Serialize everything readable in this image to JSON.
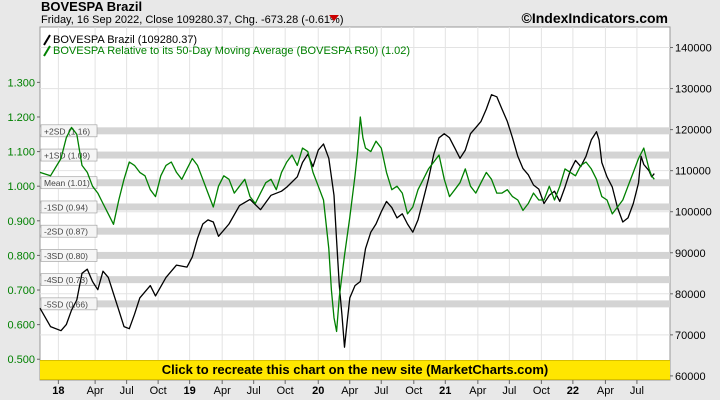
{
  "header": {
    "title": "BOVESPA Brazil",
    "subtitle_prefix": "Friday, 16 Sep 2022, Close 109280.37, Chg. -673.28 (-0.61%)",
    "site": "©IndexIndicators.com",
    "down_arrow_icon": "down-triangle-icon",
    "down_color": "#cc0000"
  },
  "legend": [
    {
      "label": "BOVESPA Brazil (109280.37)",
      "color": "#000000"
    },
    {
      "label": "BOVESPA Relative to its 50-Day Moving Average (BOVESPA R50) (1.02)",
      "color": "#008000"
    }
  ],
  "banner": {
    "text": "Click to recreate this chart on the new site (MarketCharts.com)",
    "color": "#ffe600"
  },
  "chart_data": {
    "type": "line",
    "x_ticks": [
      {
        "label": "18",
        "bold": true,
        "t": 0.035
      },
      {
        "label": "Apr",
        "bold": false,
        "t": 0.105
      },
      {
        "label": "Jul",
        "bold": false,
        "t": 0.165
      },
      {
        "label": "Oct",
        "bold": false,
        "t": 0.225
      },
      {
        "label": "19",
        "bold": true,
        "t": 0.285
      },
      {
        "label": "Apr",
        "bold": false,
        "t": 0.347
      },
      {
        "label": "Jul",
        "bold": false,
        "t": 0.407
      },
      {
        "label": "Oct",
        "bold": false,
        "t": 0.467
      },
      {
        "label": "20",
        "bold": true,
        "t": 0.53
      },
      {
        "label": "Apr",
        "bold": false,
        "t": 0.59
      },
      {
        "label": "Jul",
        "bold": false,
        "t": 0.65
      },
      {
        "label": "Oct",
        "bold": false,
        "t": 0.712
      },
      {
        "label": "21",
        "bold": true,
        "t": 0.772
      },
      {
        "label": "Apr",
        "bold": false,
        "t": 0.834
      },
      {
        "label": "Jul",
        "bold": false,
        "t": 0.894
      },
      {
        "label": "Oct",
        "bold": false,
        "t": 0.955
      },
      {
        "label": "22",
        "bold": true,
        "t": 1.015
      },
      {
        "label": "Apr",
        "bold": false,
        "t": 1.077
      },
      {
        "label": "Jul",
        "bold": false,
        "t": 1.137
      }
    ],
    "left_axis": {
      "ticks": [
        "1.300",
        "1.200",
        "1.100",
        "1.000",
        "0.900",
        "0.800",
        "0.700",
        "0.600",
        "0.500"
      ],
      "values": [
        1.3,
        1.2,
        1.1,
        1.0,
        0.9,
        0.8,
        0.7,
        0.6,
        0.5
      ],
      "ylim": [
        0.44,
        1.46
      ]
    },
    "right_axis": {
      "ticks": [
        "140000",
        "130000",
        "120000",
        "110000",
        "100000",
        "90000",
        "80000",
        "70000",
        "60000"
      ],
      "values": [
        140000,
        130000,
        120000,
        110000,
        100000,
        90000,
        80000,
        70000,
        60000
      ],
      "ylim": [
        59000,
        145000
      ]
    },
    "sd_bands": [
      {
        "label": "+2SD (1.16)",
        "value": 1.16
      },
      {
        "label": "+1SD (1.09)",
        "value": 1.09
      },
      {
        "label": "Mean (1.01)",
        "value": 1.01
      },
      {
        "label": "-1SD (0.94)",
        "value": 0.94
      },
      {
        "label": "-2SD (0.87)",
        "value": 0.87
      },
      {
        "label": "-3SD (0.80)",
        "value": 0.8
      },
      {
        "label": "-4SD (0.73)",
        "value": 0.73
      },
      {
        "label": "-5SD (0.66)",
        "value": 0.66
      }
    ],
    "series": [
      {
        "name": "BOVESPA Brazil",
        "axis": "right",
        "color": "#000000",
        "points": [
          [
            0.0,
            76500
          ],
          [
            0.02,
            72000
          ],
          [
            0.04,
            71000
          ],
          [
            0.05,
            72500
          ],
          [
            0.06,
            76000
          ],
          [
            0.07,
            78500
          ],
          [
            0.08,
            85000
          ],
          [
            0.09,
            86000
          ],
          [
            0.1,
            83000
          ],
          [
            0.11,
            81000
          ],
          [
            0.12,
            85500
          ],
          [
            0.13,
            84000
          ],
          [
            0.15,
            76000
          ],
          [
            0.16,
            72000
          ],
          [
            0.17,
            71500
          ],
          [
            0.18,
            75000
          ],
          [
            0.19,
            79000
          ],
          [
            0.21,
            82000
          ],
          [
            0.22,
            79500
          ],
          [
            0.24,
            84000
          ],
          [
            0.26,
            87000
          ],
          [
            0.28,
            86500
          ],
          [
            0.29,
            89000
          ],
          [
            0.3,
            93500
          ],
          [
            0.31,
            97000
          ],
          [
            0.32,
            98000
          ],
          [
            0.33,
            97500
          ],
          [
            0.34,
            94000
          ],
          [
            0.36,
            97000
          ],
          [
            0.38,
            101500
          ],
          [
            0.4,
            103000
          ],
          [
            0.42,
            100500
          ],
          [
            0.44,
            104000
          ],
          [
            0.46,
            105000
          ],
          [
            0.47,
            106000
          ],
          [
            0.49,
            108500
          ],
          [
            0.5,
            112000
          ],
          [
            0.51,
            114000
          ],
          [
            0.52,
            111000
          ],
          [
            0.53,
            115000
          ],
          [
            0.54,
            116500
          ],
          [
            0.55,
            113000
          ],
          [
            0.56,
            104000
          ],
          [
            0.565,
            93000
          ],
          [
            0.57,
            82000
          ],
          [
            0.575,
            75000
          ],
          [
            0.58,
            67000
          ],
          [
            0.585,
            73000
          ],
          [
            0.59,
            79000
          ],
          [
            0.6,
            82000
          ],
          [
            0.61,
            83000
          ],
          [
            0.62,
            91000
          ],
          [
            0.63,
            95000
          ],
          [
            0.64,
            97000
          ],
          [
            0.65,
            100000
          ],
          [
            0.66,
            102500
          ],
          [
            0.67,
            101000
          ],
          [
            0.68,
            98500
          ],
          [
            0.69,
            99500
          ],
          [
            0.7,
            97000
          ],
          [
            0.71,
            95000
          ],
          [
            0.72,
            98000
          ],
          [
            0.73,
            103000
          ],
          [
            0.74,
            108000
          ],
          [
            0.75,
            114000
          ],
          [
            0.76,
            118000
          ],
          [
            0.77,
            119000
          ],
          [
            0.78,
            118000
          ],
          [
            0.79,
            115500
          ],
          [
            0.8,
            113000
          ],
          [
            0.81,
            115000
          ],
          [
            0.82,
            119000
          ],
          [
            0.83,
            120500
          ],
          [
            0.84,
            122000
          ],
          [
            0.85,
            125000
          ],
          [
            0.86,
            128500
          ],
          [
            0.87,
            128000
          ],
          [
            0.88,
            125000
          ],
          [
            0.89,
            122000
          ],
          [
            0.9,
            118000
          ],
          [
            0.91,
            113500
          ],
          [
            0.92,
            110500
          ],
          [
            0.93,
            109000
          ],
          [
            0.94,
            106500
          ],
          [
            0.95,
            105500
          ],
          [
            0.96,
            102000
          ],
          [
            0.97,
            104000
          ],
          [
            0.98,
            105000
          ],
          [
            0.99,
            102500
          ],
          [
            1.0,
            106000
          ],
          [
            1.01,
            110000
          ],
          [
            1.02,
            112500
          ],
          [
            1.03,
            111000
          ],
          [
            1.04,
            113500
          ],
          [
            1.05,
            117500
          ],
          [
            1.06,
            119500
          ],
          [
            1.065,
            117500
          ],
          [
            1.07,
            112000
          ],
          [
            1.08,
            108500
          ],
          [
            1.09,
            106000
          ],
          [
            1.1,
            101000
          ],
          [
            1.11,
            97500
          ],
          [
            1.12,
            98500
          ],
          [
            1.13,
            102000
          ],
          [
            1.14,
            107000
          ],
          [
            1.145,
            113500
          ],
          [
            1.15,
            111500
          ],
          [
            1.16,
            110000
          ],
          [
            1.165,
            108500
          ],
          [
            1.17,
            109280
          ]
        ]
      },
      {
        "name": "BOVESPA Relative to its 50-Day Moving Average (BOVESPA R50)",
        "axis": "left",
        "color": "#008000",
        "points": [
          [
            0.0,
            1.04
          ],
          [
            0.02,
            1.03
          ],
          [
            0.04,
            1.08
          ],
          [
            0.05,
            1.14
          ],
          [
            0.06,
            1.17
          ],
          [
            0.07,
            1.15
          ],
          [
            0.08,
            1.06
          ],
          [
            0.09,
            1.04
          ],
          [
            0.1,
            1.0
          ],
          [
            0.11,
            0.98
          ],
          [
            0.12,
            0.95
          ],
          [
            0.13,
            0.92
          ],
          [
            0.14,
            0.89
          ],
          [
            0.15,
            0.96
          ],
          [
            0.16,
            1.02
          ],
          [
            0.17,
            1.07
          ],
          [
            0.18,
            1.06
          ],
          [
            0.19,
            1.04
          ],
          [
            0.2,
            1.03
          ],
          [
            0.21,
            0.99
          ],
          [
            0.22,
            0.97
          ],
          [
            0.23,
            1.03
          ],
          [
            0.24,
            1.06
          ],
          [
            0.25,
            1.07
          ],
          [
            0.26,
            1.04
          ],
          [
            0.27,
            1.02
          ],
          [
            0.28,
            1.05
          ],
          [
            0.29,
            1.08
          ],
          [
            0.3,
            1.06
          ],
          [
            0.31,
            1.02
          ],
          [
            0.32,
            0.98
          ],
          [
            0.33,
            0.94
          ],
          [
            0.34,
            1.0
          ],
          [
            0.35,
            1.03
          ],
          [
            0.36,
            1.02
          ],
          [
            0.37,
            0.98
          ],
          [
            0.38,
            1.0
          ],
          [
            0.39,
            1.02
          ],
          [
            0.4,
            0.97
          ],
          [
            0.41,
            0.95
          ],
          [
            0.42,
            0.98
          ],
          [
            0.43,
            1.01
          ],
          [
            0.44,
            1.02
          ],
          [
            0.45,
            0.99
          ],
          [
            0.46,
            1.04
          ],
          [
            0.47,
            1.07
          ],
          [
            0.48,
            1.09
          ],
          [
            0.49,
            1.06
          ],
          [
            0.5,
            1.11
          ],
          [
            0.51,
            1.1
          ],
          [
            0.52,
            1.04
          ],
          [
            0.53,
            1.0
          ],
          [
            0.54,
            0.96
          ],
          [
            0.55,
            0.82
          ],
          [
            0.555,
            0.7
          ],
          [
            0.56,
            0.62
          ],
          [
            0.565,
            0.58
          ],
          [
            0.57,
            0.68
          ],
          [
            0.58,
            0.8
          ],
          [
            0.59,
            0.91
          ],
          [
            0.6,
            1.03
          ],
          [
            0.605,
            1.1
          ],
          [
            0.61,
            1.2
          ],
          [
            0.615,
            1.14
          ],
          [
            0.62,
            1.11
          ],
          [
            0.63,
            1.1
          ],
          [
            0.64,
            1.13
          ],
          [
            0.65,
            1.11
          ],
          [
            0.66,
            1.04
          ],
          [
            0.67,
            0.99
          ],
          [
            0.68,
            1.0
          ],
          [
            0.69,
            0.98
          ],
          [
            0.7,
            0.92
          ],
          [
            0.71,
            0.94
          ],
          [
            0.72,
            0.99
          ],
          [
            0.73,
            1.02
          ],
          [
            0.74,
            1.05
          ],
          [
            0.75,
            1.07
          ],
          [
            0.76,
            1.09
          ],
          [
            0.77,
            1.02
          ],
          [
            0.78,
            0.97
          ],
          [
            0.79,
            0.99
          ],
          [
            0.8,
            1.01
          ],
          [
            0.81,
            1.05
          ],
          [
            0.82,
            1.0
          ],
          [
            0.83,
            0.98
          ],
          [
            0.84,
            1.01
          ],
          [
            0.85,
            1.04
          ],
          [
            0.86,
            1.02
          ],
          [
            0.87,
            0.98
          ],
          [
            0.88,
            0.98
          ],
          [
            0.89,
            0.99
          ],
          [
            0.9,
            0.97
          ],
          [
            0.91,
            0.96
          ],
          [
            0.92,
            0.93
          ],
          [
            0.93,
            0.95
          ],
          [
            0.94,
            0.98
          ],
          [
            0.95,
            0.96
          ],
          [
            0.96,
            0.96
          ],
          [
            0.97,
            1.0
          ],
          [
            0.98,
            0.96
          ],
          [
            0.99,
            1.0
          ],
          [
            1.0,
            1.05
          ],
          [
            1.01,
            1.04
          ],
          [
            1.02,
            1.03
          ],
          [
            1.03,
            1.06
          ],
          [
            1.04,
            1.07
          ],
          [
            1.05,
            1.05
          ],
          [
            1.06,
            1.02
          ],
          [
            1.07,
            0.97
          ],
          [
            1.08,
            0.96
          ],
          [
            1.09,
            0.92
          ],
          [
            1.1,
            0.94
          ],
          [
            1.11,
            0.96
          ],
          [
            1.12,
            1.0
          ],
          [
            1.13,
            1.04
          ],
          [
            1.14,
            1.08
          ],
          [
            1.15,
            1.11
          ],
          [
            1.155,
            1.08
          ],
          [
            1.16,
            1.05
          ],
          [
            1.165,
            1.03
          ],
          [
            1.17,
            1.02
          ]
        ]
      }
    ],
    "grid": true,
    "legend_placement": "top-left"
  }
}
